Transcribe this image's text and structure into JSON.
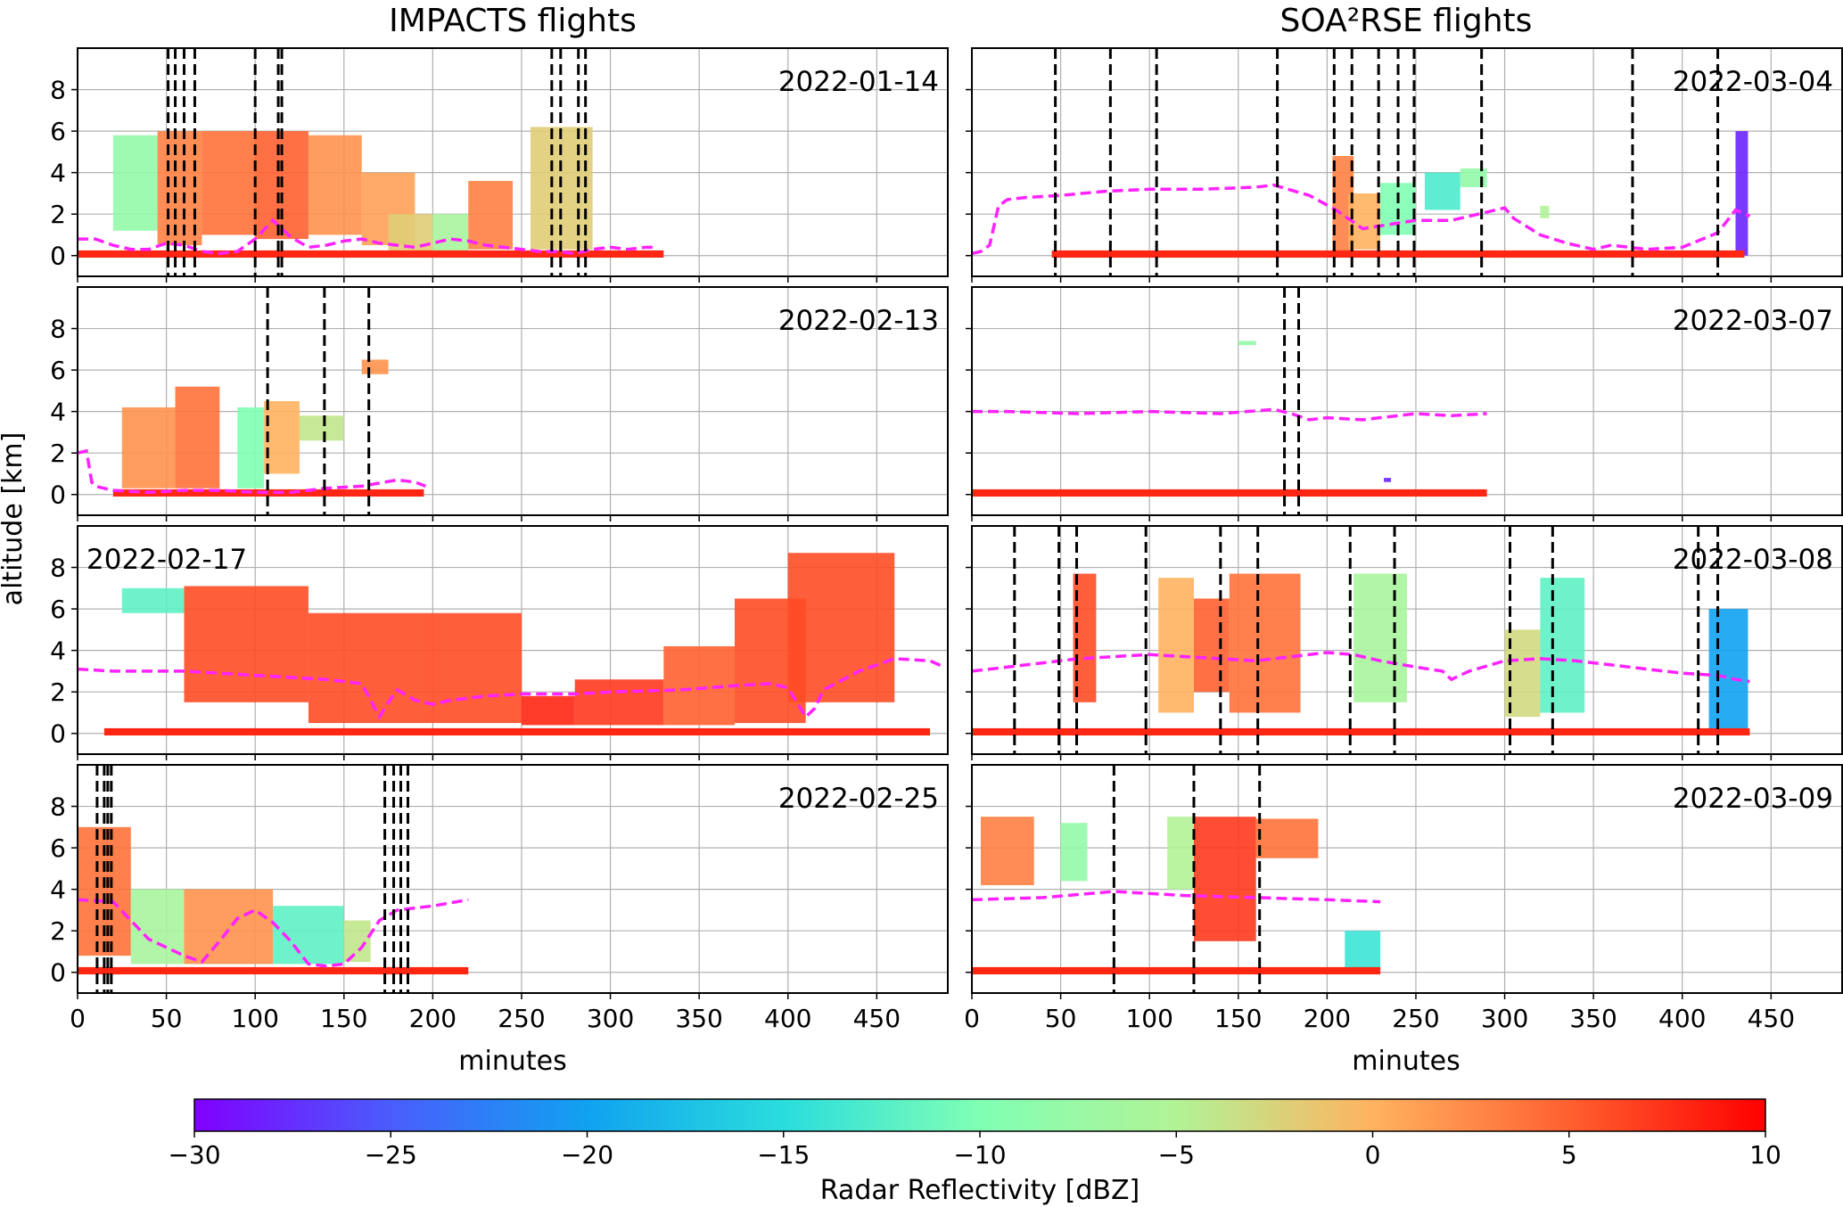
{
  "figure": {
    "column_titles": [
      "IMPACTS flights",
      "SOA²RSE flights"
    ],
    "ylabel": "altitude [km]",
    "xlabel": "minutes",
    "xticks": [
      "0",
      "50",
      "100",
      "150",
      "200",
      "250",
      "300",
      "350",
      "400",
      "450"
    ],
    "yticks": [
      "0",
      "2",
      "4",
      "6",
      "8"
    ],
    "colorbar": {
      "label": "Radar Reflectivity [dBZ]",
      "range": [
        -30,
        10
      ],
      "ticks": [
        "−30",
        "−25",
        "−20",
        "−15",
        "−10",
        "−5",
        "0",
        "5",
        "10"
      ],
      "colormap": "rainbow"
    },
    "colors": {
      "flight_altitude": "#ff22ff",
      "event_lines": "#000000",
      "grid": "#b0b0b0"
    }
  },
  "chart_data": [
    {
      "type": "heatmap",
      "title": "2022-01-14",
      "xlim": [
        0,
        490
      ],
      "ylim": [
        -1,
        10
      ],
      "grid": true,
      "echo_cells": [
        {
          "x": [
            20,
            45
          ],
          "y": [
            1.2,
            5.8
          ],
          "dbz": -8
        },
        {
          "x": [
            45,
            70
          ],
          "y": [
            0.5,
            6
          ],
          "dbz": 3
        },
        {
          "x": [
            70,
            100
          ],
          "y": [
            1,
            6
          ],
          "dbz": 4
        },
        {
          "x": [
            100,
            130
          ],
          "y": [
            0.8,
            6
          ],
          "dbz": 5
        },
        {
          "x": [
            130,
            160
          ],
          "y": [
            1,
            5.8
          ],
          "dbz": 2
        },
        {
          "x": [
            160,
            190
          ],
          "y": [
            0.5,
            4
          ],
          "dbz": 1
        },
        {
          "x": [
            175,
            200
          ],
          "y": [
            0.2,
            2
          ],
          "dbz": -2
        },
        {
          "x": [
            200,
            220
          ],
          "y": [
            0.2,
            2
          ],
          "dbz": -6
        },
        {
          "x": [
            220,
            245
          ],
          "y": [
            0.3,
            3.6
          ],
          "dbz": 3
        },
        {
          "x": [
            255,
            290
          ],
          "y": [
            0.3,
            6.2
          ],
          "dbz": -2
        }
      ],
      "surface_echo": [
        0,
        330
      ],
      "flight_altitude": {
        "x": [
          0,
          10,
          20,
          30,
          40,
          50,
          60,
          70,
          80,
          90,
          100,
          110,
          120,
          130,
          140,
          150,
          160,
          170,
          180,
          190,
          200,
          210,
          220,
          230,
          240,
          250,
          260,
          270,
          280,
          290,
          300,
          310,
          320,
          325
        ],
        "y": [
          0.8,
          0.8,
          0.5,
          0.3,
          0.3,
          0.6,
          0.5,
          0.2,
          0.1,
          0.2,
          0.8,
          1.7,
          0.9,
          0.4,
          0.5,
          0.7,
          0.8,
          0.6,
          0.5,
          0.4,
          0.6,
          0.8,
          0.7,
          0.5,
          0.4,
          0.3,
          0.2,
          0.2,
          0.1,
          0.3,
          0.4,
          0.3,
          0.4,
          0.4
        ]
      },
      "event_lines": [
        51,
        55,
        60,
        66,
        100,
        113,
        115,
        267,
        272,
        282,
        286
      ]
    },
    {
      "type": "heatmap",
      "title": "2022-03-04",
      "xlim": [
        0,
        490
      ],
      "ylim": [
        -1,
        10
      ],
      "grid": true,
      "echo_cells": [
        {
          "x": [
            203,
            215
          ],
          "y": [
            0.2,
            4.8
          ],
          "dbz": 3
        },
        {
          "x": [
            212,
            230
          ],
          "y": [
            0.3,
            3
          ],
          "dbz": 0
        },
        {
          "x": [
            230,
            250
          ],
          "y": [
            1,
            3.5
          ],
          "dbz": -10
        },
        {
          "x": [
            255,
            275
          ],
          "y": [
            2.2,
            4
          ],
          "dbz": -13
        },
        {
          "x": [
            275,
            290
          ],
          "y": [
            3.3,
            4.2
          ],
          "dbz": -8
        },
        {
          "x": [
            320,
            325
          ],
          "y": [
            1.8,
            2.4
          ],
          "dbz": -5
        },
        {
          "x": [
            430,
            437
          ],
          "y": [
            0,
            6
          ],
          "dbz": -28
        }
      ],
      "surface_echo": [
        45,
        435
      ],
      "flight_altitude": {
        "x": [
          0,
          5,
          10,
          15,
          20,
          30,
          50,
          75,
          100,
          130,
          160,
          170,
          190,
          205,
          220,
          235,
          250,
          270,
          290,
          300,
          305,
          320,
          335,
          350,
          360,
          380,
          400,
          420,
          430,
          438
        ],
        "y": [
          0.1,
          0.2,
          0.5,
          2.4,
          2.7,
          2.8,
          2.9,
          3.1,
          3.2,
          3.2,
          3.3,
          3.4,
          2.9,
          2.2,
          1.3,
          1.5,
          1.7,
          1.7,
          2.1,
          2.3,
          1.8,
          1,
          0.6,
          0.3,
          0.5,
          0.3,
          0.4,
          1.1,
          2.2,
          1.9
        ]
      },
      "event_lines": [
        47,
        78,
        104,
        172,
        204,
        214,
        229,
        240,
        249,
        287,
        372,
        420
      ]
    },
    {
      "type": "heatmap",
      "title": "2022-02-13",
      "xlim": [
        0,
        490
      ],
      "ylim": [
        -1,
        10
      ],
      "grid": true,
      "echo_cells": [
        {
          "x": [
            25,
            55
          ],
          "y": [
            0.3,
            4.2
          ],
          "dbz": 2
        },
        {
          "x": [
            55,
            80
          ],
          "y": [
            0.3,
            5.2
          ],
          "dbz": 4
        },
        {
          "x": [
            90,
            105
          ],
          "y": [
            0.3,
            4.2
          ],
          "dbz": -10
        },
        {
          "x": [
            105,
            125
          ],
          "y": [
            1,
            4.5
          ],
          "dbz": 0
        },
        {
          "x": [
            125,
            150
          ],
          "y": [
            2.6,
            3.8
          ],
          "dbz": -4
        },
        {
          "x": [
            160,
            175
          ],
          "y": [
            5.8,
            6.5
          ],
          "dbz": 2
        }
      ],
      "surface_echo": [
        20,
        195
      ],
      "flight_altitude": {
        "x": [
          0,
          5,
          8,
          10,
          20,
          40,
          60,
          80,
          100,
          120,
          140,
          160,
          180,
          190,
          196
        ],
        "y": [
          2,
          2.1,
          0.6,
          0.4,
          0.2,
          0.1,
          0.2,
          0.2,
          0.1,
          0.1,
          0.3,
          0.4,
          0.7,
          0.6,
          0.4
        ]
      },
      "event_lines": [
        107,
        139,
        164
      ]
    },
    {
      "type": "heatmap",
      "title": "2022-03-07",
      "xlim": [
        0,
        490
      ],
      "ylim": [
        -1,
        10
      ],
      "grid": true,
      "echo_cells": [
        {
          "x": [
            150,
            160
          ],
          "y": [
            7.2,
            7.4
          ],
          "dbz": -8
        },
        {
          "x": [
            232,
            236
          ],
          "y": [
            0.6,
            0.8
          ],
          "dbz": -28
        }
      ],
      "surface_echo": [
        0,
        290
      ],
      "flight_altitude": {
        "x": [
          0,
          20,
          60,
          100,
          140,
          170,
          180,
          190,
          200,
          220,
          250,
          270,
          290
        ],
        "y": [
          4,
          4,
          3.9,
          4,
          3.9,
          4.1,
          3.9,
          3.6,
          3.7,
          3.6,
          3.9,
          3.8,
          3.9
        ]
      },
      "event_lines": [
        176,
        184
      ]
    },
    {
      "type": "heatmap",
      "title": "2022-02-17",
      "xlim": [
        0,
        490
      ],
      "ylim": [
        -1,
        10
      ],
      "grid": true,
      "echo_cells": [
        {
          "x": [
            25,
            60
          ],
          "y": [
            5.8,
            7
          ],
          "dbz": -12
        },
        {
          "x": [
            60,
            130
          ],
          "y": [
            1.5,
            7.1
          ],
          "dbz": 6
        },
        {
          "x": [
            130,
            250
          ],
          "y": [
            0.5,
            5.8
          ],
          "dbz": 6
        },
        {
          "x": [
            250,
            280
          ],
          "y": [
            0.4,
            1.8
          ],
          "dbz": 8
        },
        {
          "x": [
            280,
            330
          ],
          "y": [
            0.4,
            2.6
          ],
          "dbz": 7
        },
        {
          "x": [
            330,
            370
          ],
          "y": [
            0.4,
            4.2
          ],
          "dbz": 5
        },
        {
          "x": [
            370,
            410
          ],
          "y": [
            0.5,
            6.5
          ],
          "dbz": 6
        },
        {
          "x": [
            400,
            460
          ],
          "y": [
            1.5,
            8.7
          ],
          "dbz": 6
        }
      ],
      "surface_echo": [
        15,
        480
      ],
      "flight_altitude": {
        "x": [
          0,
          20,
          40,
          60,
          80,
          100,
          120,
          140,
          150,
          160,
          165,
          170,
          175,
          180,
          190,
          200,
          210,
          230,
          250,
          280,
          300,
          340,
          370,
          390,
          400,
          405,
          410,
          415,
          420,
          440,
          460,
          480,
          488
        ],
        "y": [
          3.1,
          3,
          3,
          3,
          2.9,
          2.8,
          2.7,
          2.6,
          2.5,
          2.4,
          1.6,
          0.8,
          1.5,
          2.1,
          1.6,
          1.4,
          1.6,
          1.8,
          1.9,
          1.9,
          2,
          2.1,
          2.3,
          2.4,
          2.2,
          1.5,
          0.8,
          1.2,
          2.1,
          3,
          3.6,
          3.5,
          3.2
        ]
      },
      "event_lines": []
    },
    {
      "type": "heatmap",
      "title": "2022-03-08",
      "xlim": [
        0,
        490
      ],
      "ylim": [
        -1,
        10
      ],
      "grid": true,
      "echo_cells": [
        {
          "x": [
            57,
            70
          ],
          "y": [
            1.5,
            7.7
          ],
          "dbz": 6
        },
        {
          "x": [
            105,
            125
          ],
          "y": [
            1,
            7.5
          ],
          "dbz": 0
        },
        {
          "x": [
            125,
            145
          ],
          "y": [
            2,
            6.5
          ],
          "dbz": 5
        },
        {
          "x": [
            145,
            185
          ],
          "y": [
            1,
            7.7
          ],
          "dbz": 4
        },
        {
          "x": [
            215,
            245
          ],
          "y": [
            1.5,
            7.7
          ],
          "dbz": -6
        },
        {
          "x": [
            300,
            320
          ],
          "y": [
            0.8,
            5
          ],
          "dbz": -3
        },
        {
          "x": [
            320,
            345
          ],
          "y": [
            1,
            7.5
          ],
          "dbz": -12
        },
        {
          "x": [
            415,
            437
          ],
          "y": [
            0,
            6
          ],
          "dbz": -20
        }
      ],
      "surface_echo": [
        0,
        438
      ],
      "flight_altitude": {
        "x": [
          0,
          20,
          40,
          60,
          80,
          100,
          120,
          140,
          160,
          180,
          200,
          215,
          230,
          250,
          265,
          270,
          280,
          300,
          320,
          340,
          360,
          380,
          400,
          420,
          430,
          438
        ],
        "y": [
          3,
          3.2,
          3.4,
          3.6,
          3.7,
          3.8,
          3.7,
          3.6,
          3.5,
          3.7,
          3.9,
          3.8,
          3.5,
          3.2,
          3,
          2.6,
          3,
          3.5,
          3.6,
          3.5,
          3.3,
          3.1,
          2.9,
          2.8,
          2.6,
          2.5
        ]
      },
      "event_lines": [
        24,
        49,
        59,
        98,
        140,
        161,
        213,
        238,
        303,
        327,
        409,
        420
      ]
    },
    {
      "type": "heatmap",
      "title": "2022-02-25",
      "xlim": [
        0,
        490
      ],
      "ylim": [
        -1,
        10
      ],
      "grid": true,
      "echo_cells": [
        {
          "x": [
            0,
            30
          ],
          "y": [
            0.8,
            7
          ],
          "dbz": 4
        },
        {
          "x": [
            30,
            60
          ],
          "y": [
            0.4,
            4
          ],
          "dbz": -6
        },
        {
          "x": [
            60,
            110
          ],
          "y": [
            0.4,
            4
          ],
          "dbz": 2
        },
        {
          "x": [
            110,
            150
          ],
          "y": [
            0.4,
            3.2
          ],
          "dbz": -12
        },
        {
          "x": [
            150,
            165
          ],
          "y": [
            0.5,
            2.5
          ],
          "dbz": -4
        }
      ],
      "surface_echo": [
        0,
        220
      ],
      "flight_altitude": {
        "x": [
          0,
          20,
          30,
          40,
          50,
          60,
          70,
          80,
          90,
          100,
          110,
          120,
          130,
          140,
          150,
          160,
          170,
          180,
          200,
          220
        ],
        "y": [
          3.5,
          3.4,
          2.5,
          1.6,
          1.2,
          0.8,
          0.5,
          1.5,
          2.6,
          3,
          2.4,
          1.5,
          0.4,
          0.3,
          0.4,
          1.2,
          2.5,
          3,
          3.2,
          3.5
        ]
      },
      "event_lines": [
        11,
        15,
        17,
        19,
        173,
        178,
        182,
        186
      ]
    },
    {
      "type": "heatmap",
      "title": "2022-03-09",
      "xlim": [
        0,
        490
      ],
      "ylim": [
        -1,
        10
      ],
      "grid": true,
      "echo_cells": [
        {
          "x": [
            5,
            35
          ],
          "y": [
            4.2,
            7.5
          ],
          "dbz": 3
        },
        {
          "x": [
            50,
            65
          ],
          "y": [
            4.4,
            7.2
          ],
          "dbz": -8
        },
        {
          "x": [
            110,
            125
          ],
          "y": [
            4,
            7.5
          ],
          "dbz": -5
        },
        {
          "x": [
            125,
            160
          ],
          "y": [
            1.5,
            7.5
          ],
          "dbz": 7
        },
        {
          "x": [
            160,
            195
          ],
          "y": [
            5.5,
            7.4
          ],
          "dbz": 4
        },
        {
          "x": [
            210,
            230
          ],
          "y": [
            0.1,
            2
          ],
          "dbz": -14
        }
      ],
      "surface_echo": [
        0,
        230
      ],
      "flight_altitude": {
        "x": [
          0,
          40,
          80,
          120,
          160,
          200,
          230
        ],
        "y": [
          3.5,
          3.6,
          3.9,
          3.7,
          3.6,
          3.5,
          3.4
        ]
      },
      "event_lines": [
        80,
        125,
        162
      ]
    }
  ]
}
